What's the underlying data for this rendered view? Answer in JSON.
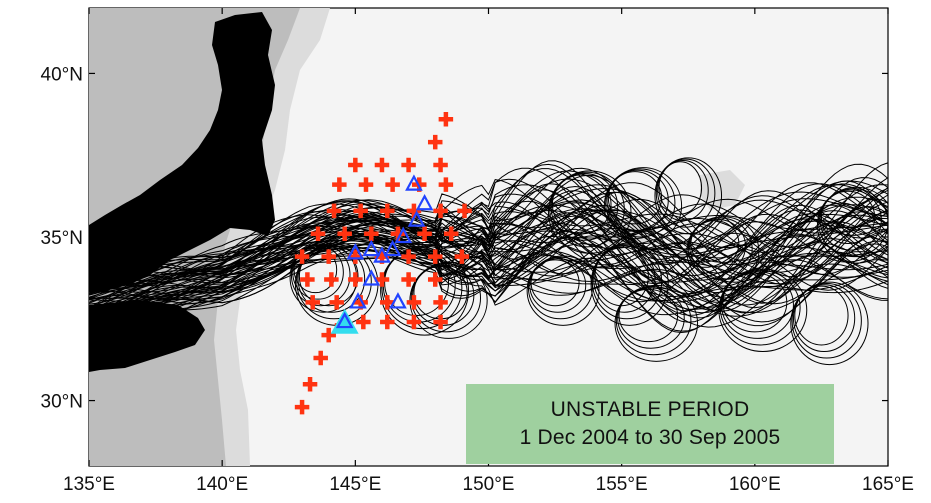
{
  "map": {
    "lon_range": [
      135,
      165
    ],
    "lat_range": [
      28,
      42
    ],
    "x_ticks": [
      {
        "value": 135,
        "label": "135°E"
      },
      {
        "value": 140,
        "label": "140°E"
      },
      {
        "value": 145,
        "label": "145°E"
      },
      {
        "value": 150,
        "label": "150°E"
      },
      {
        "value": 155,
        "label": "155°E"
      },
      {
        "value": 160,
        "label": "160°E"
      },
      {
        "value": 165,
        "label": "165°E"
      }
    ],
    "y_ticks": [
      {
        "value": 30,
        "label": "30°N"
      },
      {
        "value": 35,
        "label": "35°N"
      },
      {
        "value": 40,
        "label": "40°N"
      }
    ],
    "colors": {
      "land": "#000000",
      "shallow": "#bdbdbd",
      "shelf": "#dcdcdc",
      "sea": "#f4f4f4",
      "paths": "#000000",
      "stations": "#ff3311",
      "moorings": "#2244ff",
      "highlight": "#33ddee",
      "legend_bg": "#9fd09f"
    },
    "stations": [
      [
        143.0,
        29.8
      ],
      [
        143.3,
        30.5
      ],
      [
        143.7,
        31.3
      ],
      [
        144.0,
        32.0
      ],
      [
        144.5,
        32.3
      ],
      [
        145.3,
        32.4
      ],
      [
        146.2,
        32.4
      ],
      [
        147.2,
        32.4
      ],
      [
        148.2,
        32.4
      ],
      [
        143.4,
        33.0
      ],
      [
        144.3,
        33.0
      ],
      [
        145.2,
        33.0
      ],
      [
        146.2,
        33.0
      ],
      [
        147.2,
        33.0
      ],
      [
        148.2,
        33.0
      ],
      [
        143.2,
        33.7
      ],
      [
        144.1,
        33.7
      ],
      [
        145.0,
        33.7
      ],
      [
        146.0,
        33.7
      ],
      [
        147.0,
        33.7
      ],
      [
        148.0,
        33.7
      ],
      [
        143.0,
        34.4
      ],
      [
        144.0,
        34.4
      ],
      [
        145.0,
        34.4
      ],
      [
        146.0,
        34.4
      ],
      [
        147.0,
        34.4
      ],
      [
        148.0,
        34.4
      ],
      [
        149.0,
        34.4
      ],
      [
        143.6,
        35.1
      ],
      [
        144.6,
        35.1
      ],
      [
        145.6,
        35.1
      ],
      [
        146.6,
        35.1
      ],
      [
        147.6,
        35.1
      ],
      [
        148.6,
        35.1
      ],
      [
        144.2,
        35.8
      ],
      [
        145.2,
        35.8
      ],
      [
        146.2,
        35.8
      ],
      [
        147.2,
        35.8
      ],
      [
        148.2,
        35.8
      ],
      [
        149.1,
        35.8
      ],
      [
        144.4,
        36.6
      ],
      [
        145.4,
        36.6
      ],
      [
        146.4,
        36.6
      ],
      [
        147.4,
        36.6
      ],
      [
        148.4,
        36.6
      ],
      [
        145.0,
        37.2
      ],
      [
        146.0,
        37.2
      ],
      [
        147.0,
        37.2
      ],
      [
        148.2,
        37.2
      ],
      [
        148.0,
        37.9
      ],
      [
        148.4,
        38.6
      ]
    ],
    "moorings": [
      [
        144.6,
        32.4
      ],
      [
        145.1,
        33.0
      ],
      [
        145.6,
        33.7
      ],
      [
        146.0,
        34.4
      ],
      [
        146.4,
        34.6
      ],
      [
        145.6,
        34.6
      ],
      [
        146.8,
        35.0
      ],
      [
        147.3,
        35.5
      ],
      [
        147.6,
        36.0
      ],
      [
        147.2,
        36.6
      ],
      [
        145.0,
        34.5
      ],
      [
        146.6,
        33.0
      ]
    ],
    "highlight_mooring": [
      144.6,
      32.35
    ]
  },
  "legend": {
    "line1": "UNSTABLE PERIOD",
    "line2": "1 Dec 2004 to 30 Sep 2005"
  }
}
